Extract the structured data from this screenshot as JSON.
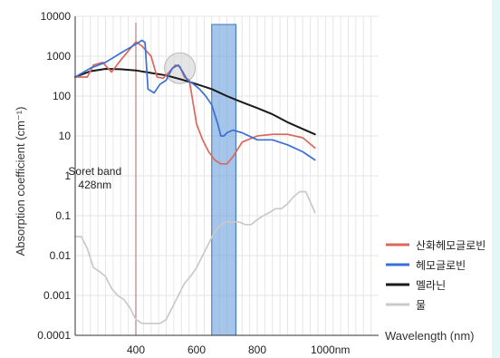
{
  "chart_data": {
    "type": "line",
    "ylabel": "Absorption coefficient (cm⁻¹)",
    "xlabel": "Wavelength (nm)",
    "y_scale": "log",
    "ylim": [
      0.0001,
      10000
    ],
    "xlim": [
      200,
      1200
    ],
    "y_ticks": [
      "10000",
      "1000",
      "100",
      "10",
      "1",
      "0.1",
      "0.01",
      "0.001",
      "0.0001"
    ],
    "x_ticks": [
      {
        "value": 400,
        "label": "400"
      },
      {
        "value": 600,
        "label": "600"
      },
      {
        "value": 800,
        "label": "800"
      },
      {
        "value": 1000,
        "label": "1000nm"
      }
    ],
    "grid": true,
    "legend_placement": "right",
    "series": [
      {
        "name": "산화헤모글로빈",
        "color": "#d9695a",
        "x": [
          200,
          240,
          260,
          290,
          320,
          350,
          380,
          400,
          420,
          450,
          470,
          490,
          510,
          530,
          545,
          560,
          576,
          600,
          620,
          640,
          660,
          680,
          700,
          720,
          750,
          800,
          850,
          900,
          950,
          990
        ],
        "y": [
          300,
          300,
          600,
          700,
          400,
          800,
          1500,
          2300,
          1800,
          1000,
          300,
          280,
          400,
          600,
          550,
          300,
          250,
          20,
          8,
          4,
          2.5,
          2,
          2,
          3,
          7,
          10,
          11,
          11,
          9,
          5
        ]
      },
      {
        "name": "헤모글로빈",
        "color": "#3b6fd6",
        "x": [
          200,
          250,
          300,
          350,
          400,
          420,
          430,
          440,
          460,
          480,
          500,
          520,
          540,
          555,
          570,
          590,
          610,
          630,
          650,
          670,
          680,
          690,
          700,
          720,
          750,
          800,
          850,
          900,
          950,
          990
        ],
        "y": [
          300,
          500,
          700,
          1200,
          2000,
          2500,
          2200,
          150,
          120,
          200,
          250,
          500,
          600,
          400,
          250,
          200,
          150,
          100,
          60,
          20,
          10,
          10,
          12,
          14,
          12,
          8,
          8,
          6,
          4,
          2.5
        ]
      },
      {
        "name": "멜라닌",
        "color": "#1a1a1a",
        "x": [
          200,
          250,
          300,
          350,
          400,
          450,
          500,
          550,
          600,
          650,
          700,
          750,
          800,
          850,
          900,
          950,
          990
        ],
        "y": [
          300,
          420,
          480,
          470,
          440,
          380,
          330,
          260,
          200,
          150,
          100,
          70,
          50,
          35,
          22,
          15,
          11
        ]
      },
      {
        "name": "물",
        "color": "#c9c9c9",
        "x": [
          200,
          220,
          240,
          260,
          280,
          300,
          320,
          340,
          360,
          380,
          400,
          420,
          450,
          480,
          500,
          520,
          540,
          560,
          580,
          600,
          620,
          640,
          660,
          680,
          700,
          720,
          740,
          760,
          780,
          800,
          820,
          840,
          860,
          880,
          900,
          920,
          940,
          960,
          990
        ],
        "y": [
          0.03,
          0.03,
          0.015,
          0.005,
          0.004,
          0.003,
          0.0015,
          0.001,
          0.0008,
          0.0005,
          0.00025,
          0.0002,
          0.0002,
          0.0002,
          0.00025,
          0.0005,
          0.001,
          0.002,
          0.003,
          0.005,
          0.01,
          0.02,
          0.04,
          0.06,
          0.07,
          0.07,
          0.07,
          0.06,
          0.06,
          0.08,
          0.1,
          0.12,
          0.15,
          0.15,
          0.2,
          0.3,
          0.4,
          0.4,
          0.12
        ]
      }
    ],
    "annotations": [
      {
        "text": "Soret band",
        "x": 265,
        "y": 1.05
      },
      {
        "text": "428nm",
        "x": 265,
        "y": 0.48
      }
    ],
    "highlight_band": {
      "x_start": 650,
      "x_end": 730,
      "color": "#6a9fdc"
    },
    "marker_line": {
      "x": 400,
      "color": "#a46a6a"
    },
    "circle_highlight": {
      "x": 545,
      "y": 500
    }
  }
}
